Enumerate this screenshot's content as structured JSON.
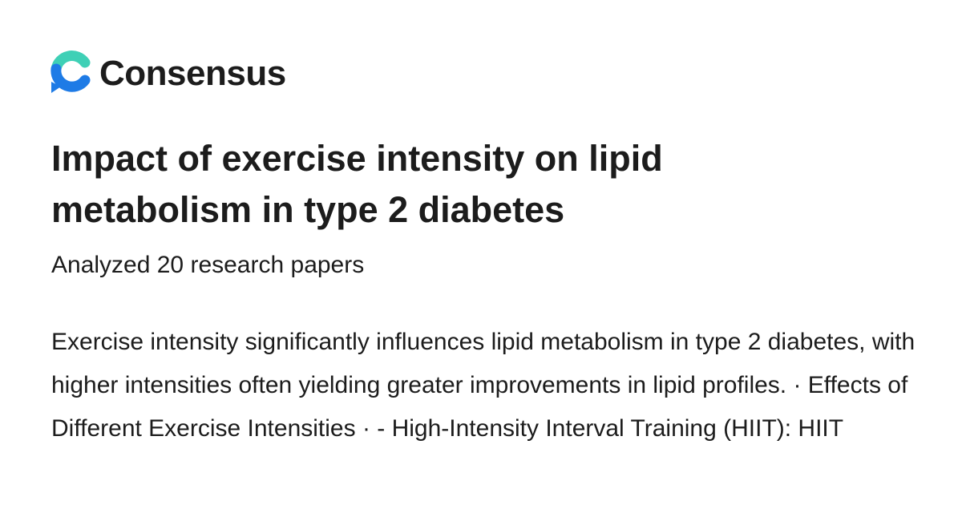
{
  "header": {
    "brand": "Consensus"
  },
  "title": "Impact of exercise intensity on lipid metabolism in type 2 diabetes",
  "subtitle": "Analyzed 20 research papers",
  "summary": "Exercise intensity significantly influences lipid metabolism in type 2 diabetes, with higher intensities often yielding greater improvements in lipid profiles. · Effects of Different Exercise Intensities · - High-Intensity Interval Training (HIIT): HIIT"
}
